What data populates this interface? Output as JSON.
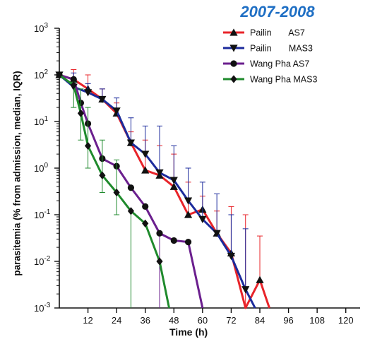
{
  "header": {
    "period_label": "2007-2008"
  },
  "chart_data": {
    "type": "line",
    "title": "",
    "xlabel": "Time (h)",
    "ylabel": "parasitemia (% from admission, median, IQR)",
    "yscale": "log",
    "xlim": [
      0,
      126
    ],
    "ylim": [
      0.001,
      1000
    ],
    "x_ticks": [
      12,
      24,
      36,
      48,
      60,
      72,
      84,
      96,
      108,
      120
    ],
    "y_ticks": [
      {
        "value": 0.001,
        "base": "10",
        "exp": "-3"
      },
      {
        "value": 0.01,
        "base": "10",
        "exp": "-2"
      },
      {
        "value": 0.1,
        "base": "10",
        "exp": "-1"
      },
      {
        "value": 1,
        "base": "10",
        "exp": "0"
      },
      {
        "value": 10,
        "base": "10",
        "exp": "1"
      },
      {
        "value": 100,
        "base": "10",
        "exp": "2"
      },
      {
        "value": 1000,
        "base": "10",
        "exp": "3"
      }
    ],
    "legend_position": "top-right",
    "series": [
      {
        "name": "Pailin       AS7",
        "color": "#e8242a",
        "marker": "triangle-up",
        "x": [
          0,
          6,
          12,
          18,
          24,
          30,
          36,
          42,
          48,
          54,
          60,
          66,
          72,
          78,
          84
        ],
        "y": [
          100,
          80,
          50,
          30,
          15,
          3.5,
          0.9,
          0.7,
          0.4,
          0.1,
          0.13,
          0.04,
          0.015,
          0.001,
          0.004
        ],
        "err_upper": [
          null,
          130,
          100,
          50,
          25,
          6,
          4,
          3,
          2,
          0.5,
          0.25,
          0.12,
          0.15,
          0.1,
          0.035
        ],
        "end_x": 88
      },
      {
        "name": "Pailin       MAS3",
        "color": "#1c2b9c",
        "marker": "triangle-down",
        "x": [
          0,
          6,
          12,
          18,
          24,
          30,
          36,
          42,
          48,
          54,
          60,
          66,
          72,
          78,
          82
        ],
        "y": [
          100,
          55,
          42,
          30,
          17,
          3.5,
          2,
          0.8,
          0.55,
          0.2,
          0.08,
          0.04,
          0.013,
          0.0025,
          0.001
        ],
        "err_upper": [
          null,
          110,
          65,
          50,
          32,
          12,
          8,
          8,
          3,
          1,
          0.5,
          0.28,
          0.1,
          0.05,
          null
        ]
      },
      {
        "name": "Wang Pha AS7",
        "color": "#6b1f8e",
        "marker": "circle",
        "x": [
          0,
          6,
          9,
          12,
          18,
          24,
          30,
          36,
          42,
          48,
          54,
          60
        ],
        "y": [
          100,
          80,
          25,
          9,
          1.6,
          1.1,
          0.38,
          0.15,
          0.04,
          0.028,
          0.026,
          0.001
        ],
        "err_upper": [
          null,
          null,
          null,
          null,
          null,
          null,
          null,
          null,
          null,
          null,
          null,
          null
        ],
        "err_lower": [
          {
            "x": 42,
            "y": 0.001
          }
        ]
      },
      {
        "name": "Wang Pha MAS3",
        "color": "#1f8a2c",
        "marker": "diamond",
        "x": [
          0,
          6,
          9,
          12,
          18,
          24,
          30,
          36,
          42,
          46
        ],
        "y": [
          100,
          60,
          15,
          3,
          0.7,
          0.3,
          0.12,
          0.065,
          0.01,
          0.001
        ],
        "err_upper": [
          null,
          70,
          50,
          20,
          4,
          1.5,
          null,
          null,
          null,
          null
        ],
        "err_lower_values": [
          null,
          20,
          4,
          1,
          0.3,
          0.1,
          0.001,
          null,
          null,
          null
        ]
      }
    ]
  }
}
